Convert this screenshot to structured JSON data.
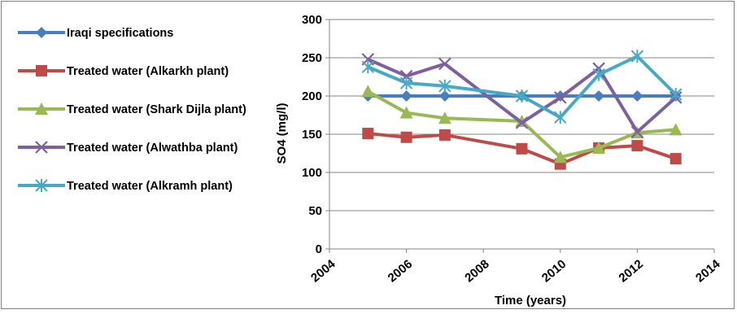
{
  "chart_data": {
    "type": "line",
    "title": "",
    "xlabel": "Time (years)",
    "ylabel": "SO4 (mg/l)",
    "xlim": [
      2004,
      2014
    ],
    "ylim": [
      0,
      300
    ],
    "x_ticks": [
      "2004",
      "2006",
      "2008",
      "2010",
      "2012",
      "2014"
    ],
    "y_ticks": [
      "0",
      "50",
      "100",
      "150",
      "200",
      "250",
      "300"
    ],
    "grid": "horizontal",
    "legend_position": "left",
    "series": [
      {
        "name": "Iraqi specifications",
        "color": "#4a7ebb",
        "marker": "diamond",
        "x": [
          2005,
          2006,
          2007,
          2009,
          2010,
          2011,
          2012,
          2013
        ],
        "y": [
          200,
          200,
          200,
          200,
          200,
          200,
          200,
          200
        ]
      },
      {
        "name": "Treated water (Alkarkh plant)",
        "color": "#be4b48",
        "marker": "square",
        "x": [
          2005,
          2006,
          2007,
          2009,
          2010,
          2011,
          2012,
          2013
        ],
        "y": [
          151,
          146,
          149,
          131,
          111,
          132,
          135,
          118
        ]
      },
      {
        "name": "Treated water (Shark Dijla plant)",
        "color": "#98b954",
        "marker": "triangle",
        "x": [
          2005,
          2006,
          2007,
          2009,
          2010,
          2011,
          2012,
          2013
        ],
        "y": [
          206,
          178,
          171,
          167,
          120,
          132,
          152,
          156
        ]
      },
      {
        "name": "Treated water (Alwathba plant)",
        "color": "#7d60a0",
        "marker": "x",
        "x": [
          2005,
          2006,
          2007,
          2009,
          2010,
          2011,
          2012,
          2013
        ],
        "y": [
          248,
          226,
          242,
          165,
          198,
          236,
          153,
          198
        ]
      },
      {
        "name": "Treated water (Alkramh plant)",
        "color": "#46aac5",
        "marker": "star",
        "x": [
          2005,
          2006,
          2007,
          2009,
          2010,
          2011,
          2012,
          2013
        ],
        "y": [
          238,
          217,
          213,
          200,
          172,
          228,
          252,
          202
        ]
      }
    ]
  }
}
